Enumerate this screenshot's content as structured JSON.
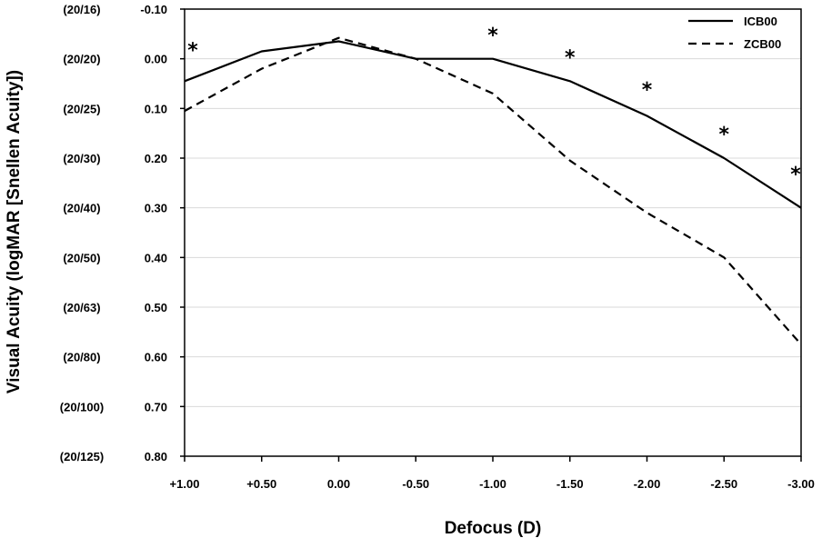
{
  "chart_data": {
    "type": "line",
    "title": "",
    "xlabel": "Defocus (D)",
    "ylabel": "Visual Acuity (logMAR [Snellen Acuity])",
    "categories": [
      "+1.00",
      "+0.50",
      "0.00",
      "-0.50",
      "-1.00",
      "-1.50",
      "-2.00",
      "-2.50",
      "-3.00"
    ],
    "x": [
      1.0,
      0.5,
      0.0,
      -0.5,
      -1.0,
      -1.5,
      -2.0,
      -2.5,
      -3.0
    ],
    "xlim": [
      1.0,
      -3.0
    ],
    "ylim": [
      -0.1,
      0.8
    ],
    "y_inverted": true,
    "y_ticks": [
      -0.1,
      0.0,
      0.1,
      0.2,
      0.3,
      0.4,
      0.5,
      0.6,
      0.7,
      0.8
    ],
    "y_tick_labels": [
      "-0.10",
      "0.00",
      "0.10",
      "0.20",
      "0.30",
      "0.40",
      "0.50",
      "0.60",
      "0.70",
      "0.80"
    ],
    "snellen_labels": [
      "(20/16)",
      "(20/20)",
      "(20/25)",
      "(20/30)",
      "(20/40)",
      "(20/50)",
      "(20/63)",
      "(20/80)",
      "(20/100)",
      "(20/125)"
    ],
    "grid": true,
    "legend_position": "top-right",
    "series": [
      {
        "name": "ICB00",
        "style": "solid",
        "values": [
          0.045,
          -0.015,
          -0.035,
          0.0,
          0.0,
          0.045,
          0.115,
          0.2,
          0.3
        ]
      },
      {
        "name": "ZCB00",
        "style": "dashed",
        "values": [
          0.105,
          0.02,
          -0.042,
          0.0,
          0.07,
          0.205,
          0.31,
          0.4,
          0.575
        ]
      }
    ],
    "annotations": [
      {
        "text": "*",
        "x": 1.0,
        "y": -0.03
      },
      {
        "text": "*",
        "x": -1.0,
        "y": -0.06
      },
      {
        "text": "*",
        "x": -1.5,
        "y": -0.015
      },
      {
        "text": "*",
        "x": -2.0,
        "y": 0.05
      },
      {
        "text": "*",
        "x": -2.5,
        "y": 0.14
      },
      {
        "text": "*",
        "x": -3.0,
        "y": 0.22
      }
    ],
    "colors": {
      "line": "#000000",
      "grid": "#d9d9d9",
      "axis": "#000000"
    }
  }
}
